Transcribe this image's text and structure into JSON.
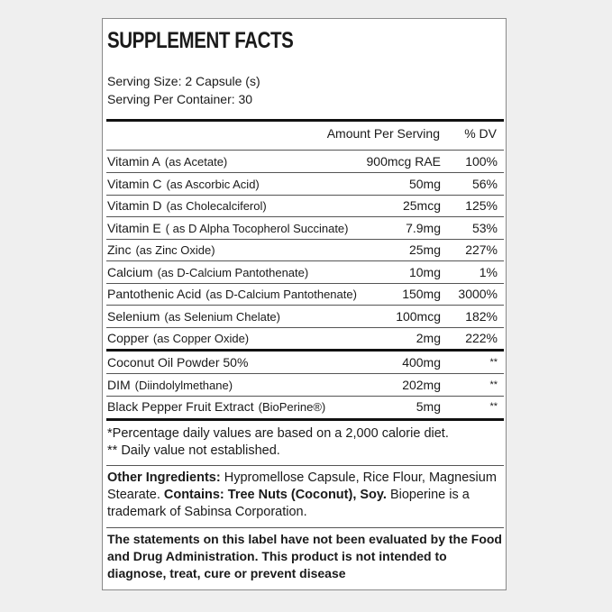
{
  "title": "SUPPLEMENT FACTS",
  "serving_size": "Serving Size: 2 Capsule (s)",
  "servings_per_container": "Serving Per Container: 30",
  "columns": {
    "amount": "Amount Per Serving",
    "dv": "% DV"
  },
  "nutrients": [
    {
      "name": "Vitamin A",
      "source": "(as Acetate)",
      "amount": "900mcg RAE",
      "dv": "100%"
    },
    {
      "name": "Vitamin C",
      "source": "(as Ascorbic Acid)",
      "amount": "50mg",
      "dv": "56%"
    },
    {
      "name": "Vitamin D",
      "source": "(as Cholecalciferol)",
      "amount": "25mcg",
      "dv": "125%"
    },
    {
      "name": "Vitamin E",
      "source": "( as D Alpha Tocopherol Succinate)",
      "amount": "7.9mg",
      "dv": "53%"
    },
    {
      "name": "Zinc",
      "source": "(as Zinc Oxide)",
      "amount": "25mg",
      "dv": "227%"
    },
    {
      "name": "Calcium",
      "source": "(as D-Calcium Pantothenate)",
      "amount": "10mg",
      "dv": "1%"
    },
    {
      "name": "Pantothenic Acid",
      "source": "(as D-Calcium Pantothenate)",
      "amount": "150mg",
      "dv": "3000%"
    },
    {
      "name": "Selenium",
      "source": "(as Selenium Chelate)",
      "amount": "100mcg",
      "dv": "182%"
    },
    {
      "name": "Copper",
      "source": "(as Copper Oxide)",
      "amount": "2mg",
      "dv": "222%"
    }
  ],
  "other_nutrients": [
    {
      "name": "Coconut Oil Powder 50%",
      "source": "",
      "amount": "400mg",
      "dv": "**"
    },
    {
      "name": "DIM",
      "source": "(Diindolylmethane)",
      "amount": "202mg",
      "dv": "**"
    },
    {
      "name": "Black Pepper Fruit Extract",
      "source": "(BioPerine®)",
      "amount": "5mg",
      "dv": "**"
    }
  ],
  "footnotes": [
    "*Percentage daily values are based on a 2,000 calorie diet.",
    "** Daily value not established."
  ],
  "other_ingredients": {
    "label": "Other Ingredients:",
    "text": " Hypromellose Capsule, Rice Flour, Magnesium Stearate. ",
    "contains_label": "Contains: Tree Nuts (Coconut), Soy.",
    "trademark": " Bioperine is a trademark of Sabinsa Corporation."
  },
  "disclaimer": "The statements on this label have not been evaluated by the Food and Drug Administration. This product is not intended to diagnose, treat, cure or prevent disease"
}
